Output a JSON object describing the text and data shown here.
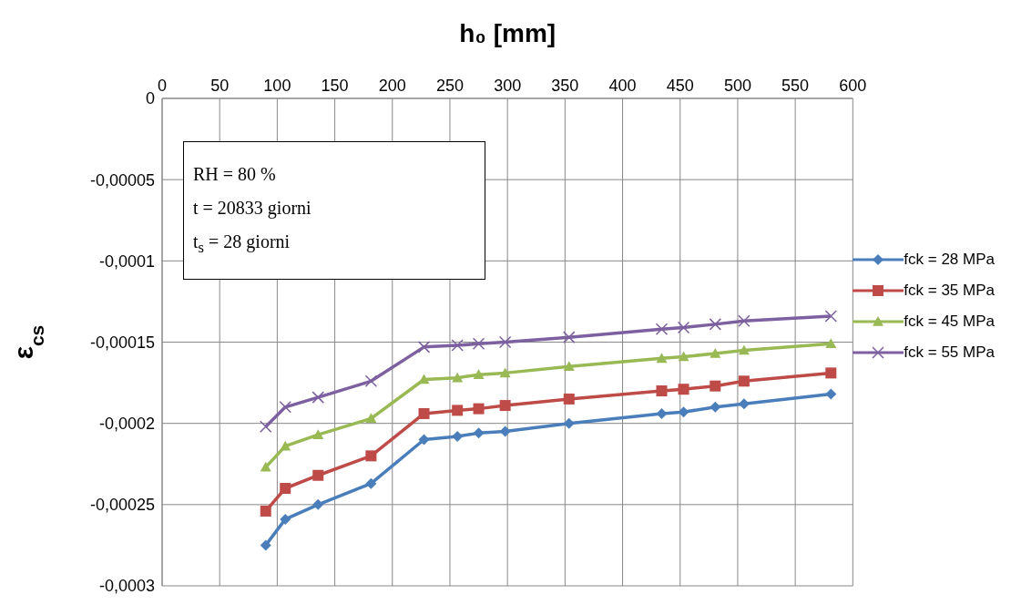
{
  "chart_data": {
    "type": "line",
    "xlabel": "h₀ [mm]",
    "ylabel": "ε$_{cs}$",
    "annotations": [
      "RH = 80 %",
      "t = 20833 giorni",
      "t$_{s}$ = 28 giorni"
    ],
    "x": [
      90,
      107,
      135.5,
      181.5,
      227.5,
      256.5,
      275,
      298,
      353.5,
      434,
      453,
      480.5,
      505.5,
      581
    ],
    "xlim": [
      0,
      600
    ],
    "xticks": [
      0,
      50,
      100,
      150,
      200,
      250,
      300,
      350,
      400,
      450,
      500,
      550,
      600
    ],
    "ylim": [
      -0.0003,
      0
    ],
    "yticks": [
      {
        "value": -0.0003,
        "label": "-0,0003"
      },
      {
        "value": -0.00025,
        "label": "-0,00025"
      },
      {
        "value": -0.0002,
        "label": "-0,0002"
      },
      {
        "value": -0.00015,
        "label": "-0,00015"
      },
      {
        "value": -0.0001,
        "label": "-0,0001"
      },
      {
        "value": -5e-05,
        "label": "-0,00005"
      },
      0
    ],
    "grid": true,
    "legend": "right",
    "line_style": "solid",
    "series": [
      {
        "name": "fck = 28 MPa",
        "color": "#4a7ebb",
        "marker": "diamond",
        "values": [
          -0.000275,
          -0.000259,
          -0.00025,
          -0.000237,
          -0.00021,
          -0.000208,
          -0.000206,
          -0.000205,
          -0.0002,
          -0.000194,
          -0.000193,
          -0.00019,
          -0.000188,
          -0.000182
        ]
      },
      {
        "name": "fck = 35 MPa",
        "color": "#be4b48",
        "marker": "square",
        "values": [
          -0.000254,
          -0.00024,
          -0.000232,
          -0.00022,
          -0.000194,
          -0.000192,
          -0.000191,
          -0.000189,
          -0.000185,
          -0.00018,
          -0.000179,
          -0.000177,
          -0.000174,
          -0.000169
        ]
      },
      {
        "name": "fck = 45 MPa",
        "color": "#98b954",
        "marker": "triangle",
        "values": [
          -0.000227,
          -0.000214,
          -0.000207,
          -0.000197,
          -0.000173,
          -0.000172,
          -0.00017,
          -0.000169,
          -0.000165,
          -0.00016,
          -0.000159,
          -0.000157,
          -0.000155,
          -0.000151
        ]
      },
      {
        "name": "fck = 55 MPa",
        "color": "#7d60a0",
        "marker": "cross",
        "values": [
          -0.000202,
          -0.00019,
          -0.000184,
          -0.000174,
          -0.000153,
          -0.000152,
          -0.000151,
          -0.00015,
          -0.000147,
          -0.000142,
          -0.000141,
          -0.000139,
          -0.000137,
          -0.000134
        ]
      }
    ]
  }
}
